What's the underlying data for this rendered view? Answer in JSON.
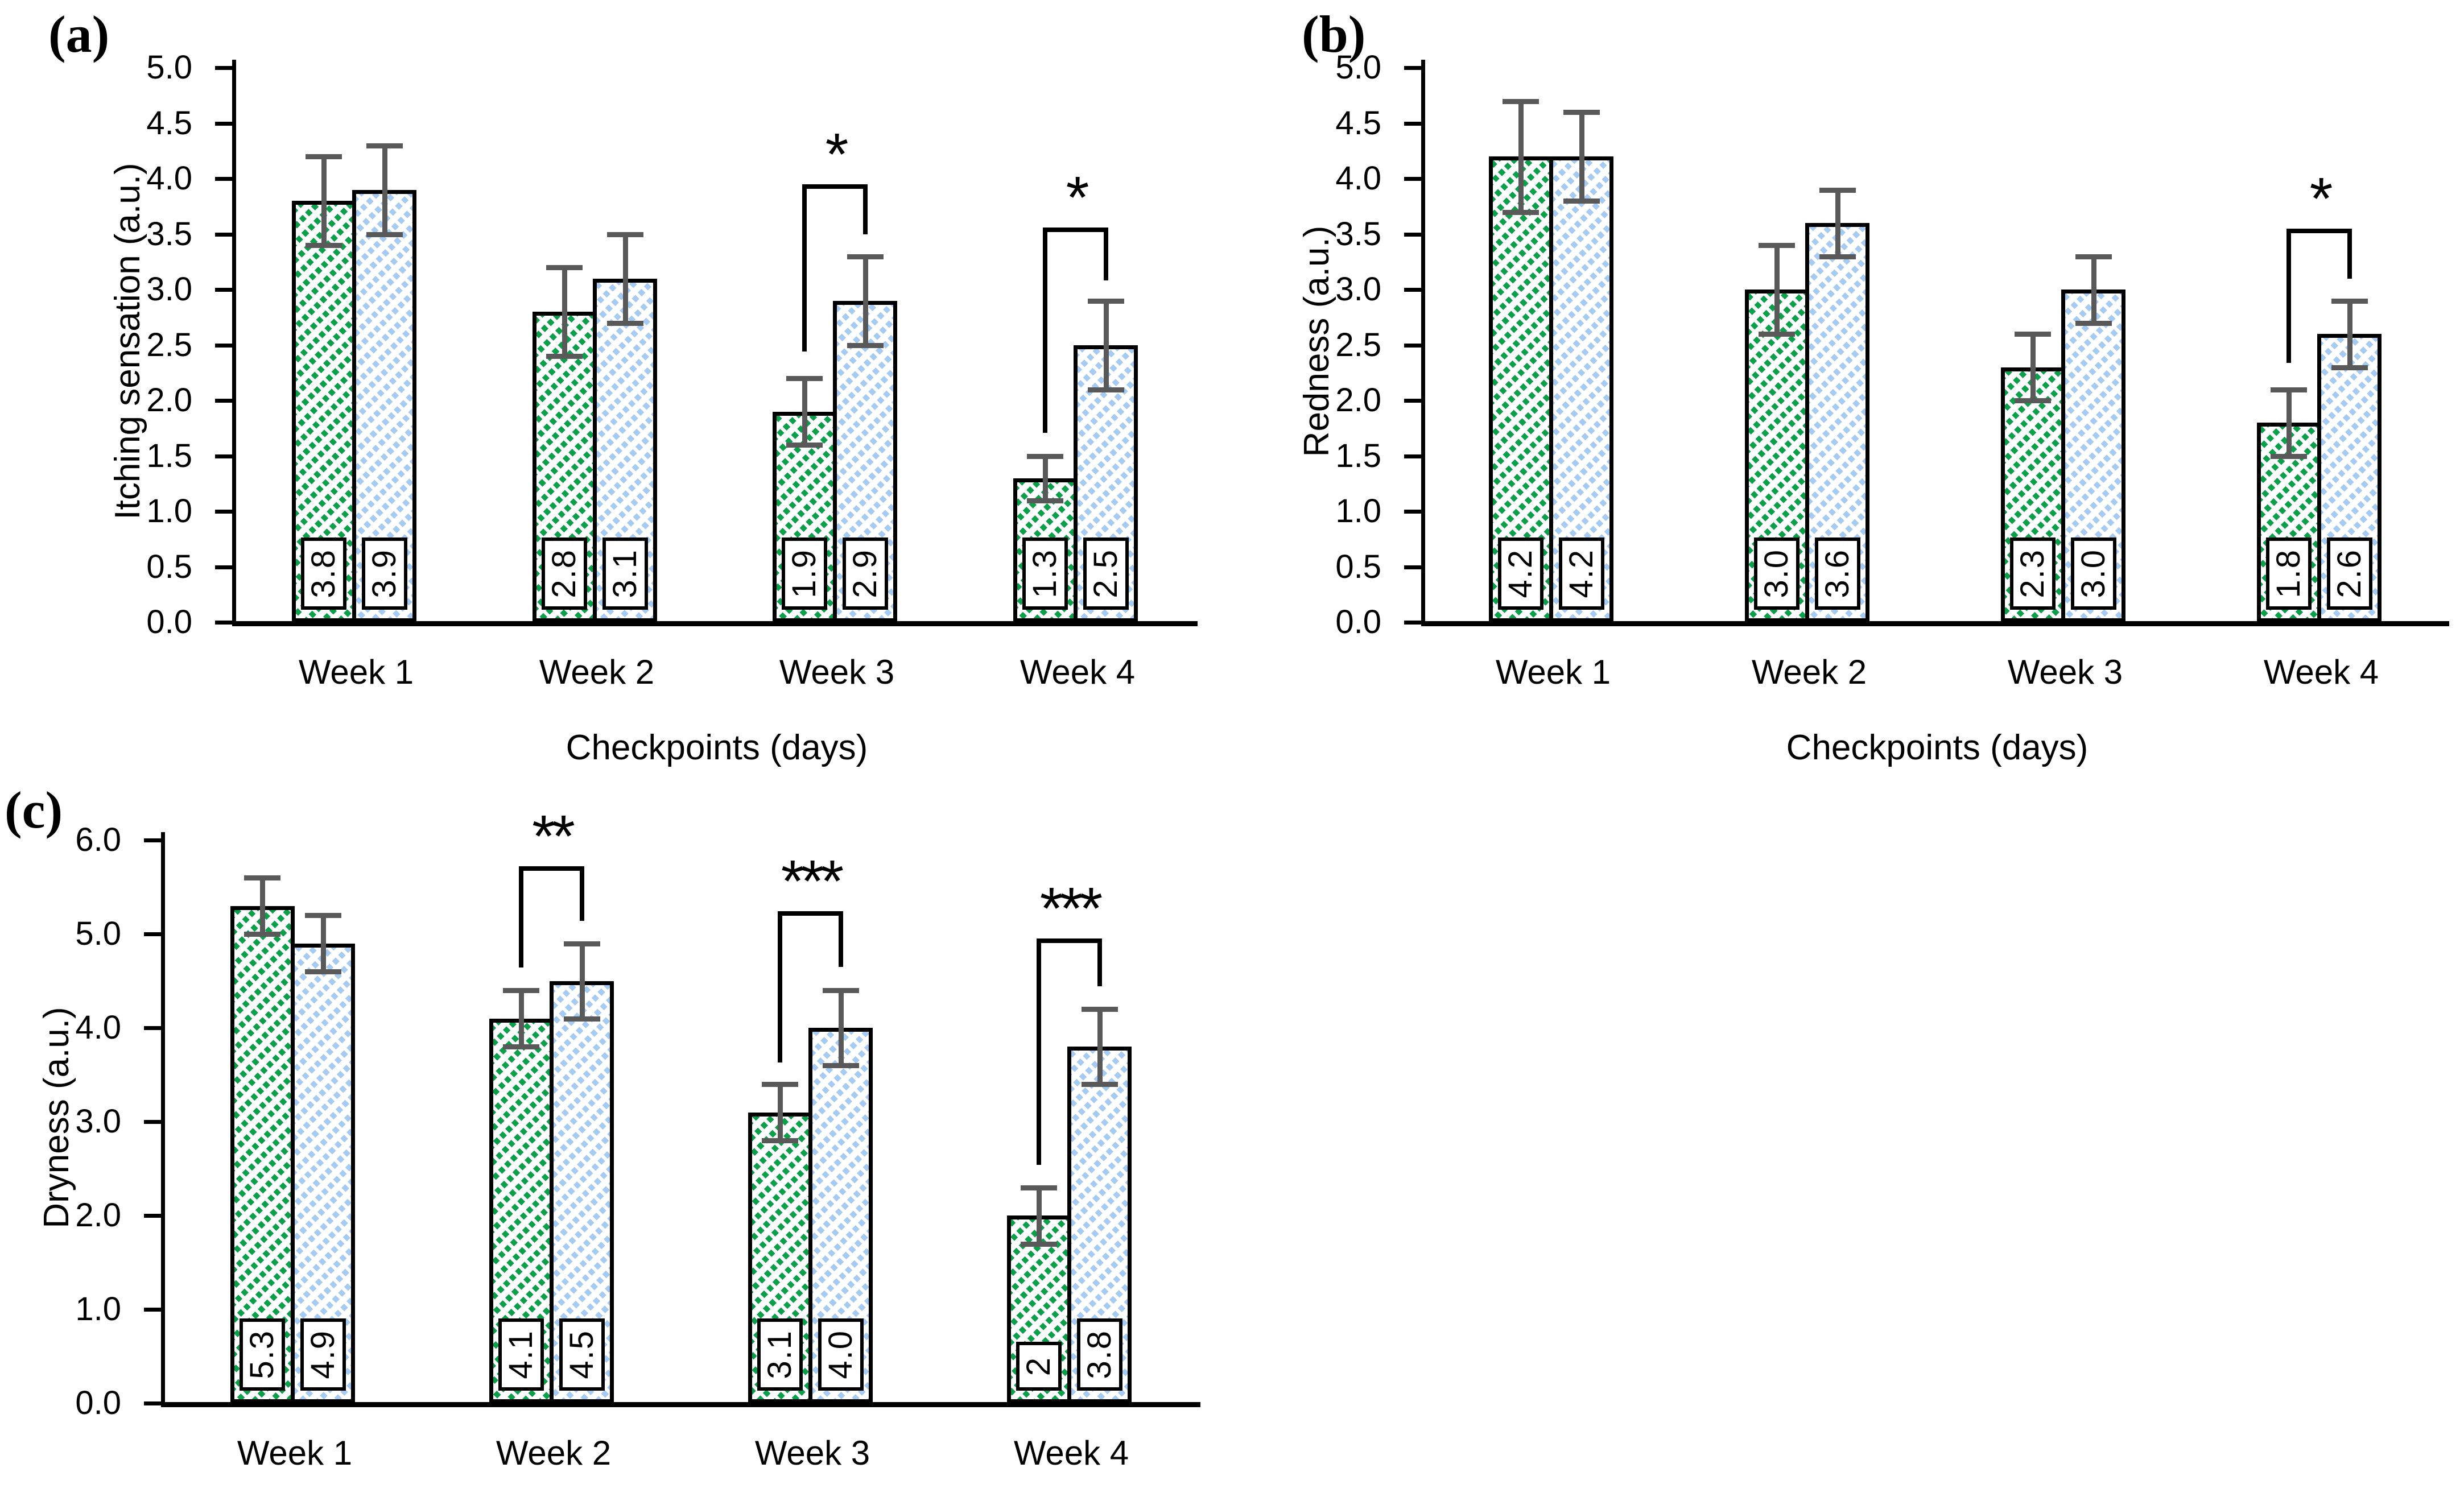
{
  "figure": {
    "background": "#ffffff",
    "bar_fill_green": "#0aa04a",
    "bar_fill_blue": "#a6cbf2",
    "bar_border": "#000000",
    "error_bar_color": "#595959",
    "significance_color": "#000000",
    "text_color": "#000000"
  },
  "chart_data": [
    {
      "type": "bar",
      "panel_label": "(a)",
      "ylabel": "Itching sensation (a.u.)",
      "xlabel": "Checkpoints (days)",
      "ylim": [
        0.0,
        5.0
      ],
      "ytick_step": 0.5,
      "grid": false,
      "legend": "none",
      "categories": [
        "Week 1",
        "Week 2",
        "Week 3",
        "Week 4"
      ],
      "series": [
        {
          "name": "green-hatched",
          "values": [
            3.8,
            2.8,
            1.9,
            1.3
          ],
          "errors": [
            0.4,
            0.4,
            0.3,
            0.2
          ],
          "labels": [
            "3.8",
            "2.8",
            "1.9",
            "1.3"
          ]
        },
        {
          "name": "blue-hatched",
          "values": [
            3.9,
            3.1,
            2.9,
            2.5
          ],
          "errors": [
            0.4,
            0.4,
            0.4,
            0.4
          ],
          "labels": [
            "3.9",
            "3.1",
            "2.9",
            "2.5"
          ]
        }
      ],
      "significance": [
        {
          "group_index": 2,
          "symbol": "*",
          "bracket_top": 3.95,
          "left_leg_bottom": 2.44,
          "right_leg_bottom": 3.5
        },
        {
          "group_index": 3,
          "symbol": "*",
          "bracket_top": 3.56,
          "left_leg_bottom": 1.71,
          "right_leg_bottom": 3.08
        }
      ]
    },
    {
      "type": "bar",
      "panel_label": "(b)",
      "ylabel": "Redness (a.u.)",
      "xlabel": "Checkpoints (days)",
      "ylim": [
        0.0,
        5.0
      ],
      "ytick_step": 0.5,
      "grid": false,
      "legend": "none",
      "categories": [
        "Week 1",
        "Week 2",
        "Week 3",
        "Week 4"
      ],
      "series": [
        {
          "name": "green-hatched",
          "values": [
            4.2,
            3.0,
            2.3,
            1.8
          ],
          "errors": [
            0.5,
            0.4,
            0.3,
            0.3
          ],
          "labels": [
            "4.2",
            "3.0",
            "2.3",
            "1.8"
          ]
        },
        {
          "name": "blue-hatched",
          "values": [
            4.2,
            3.6,
            3.0,
            2.6
          ],
          "errors": [
            0.4,
            0.3,
            0.3,
            0.3
          ],
          "labels": [
            "4.2",
            "3.6",
            "3.0",
            "2.6"
          ]
        }
      ],
      "significance": [
        {
          "group_index": 3,
          "symbol": "*",
          "bracket_top": 3.55,
          "left_leg_bottom": 2.34,
          "right_leg_bottom": 3.1
        }
      ]
    },
    {
      "type": "bar",
      "panel_label": "(c)",
      "ylabel": "Dryness (a.u.)",
      "xlabel": "Checkpoints (days)",
      "ylim": [
        0.0,
        6.0
      ],
      "ytick_step": 1.0,
      "grid": false,
      "legend": "none",
      "categories": [
        "Week 1",
        "Week 2",
        "Week 3",
        "Week 4"
      ],
      "series": [
        {
          "name": "green-hatched",
          "values": [
            5.3,
            4.1,
            3.1,
            2.0
          ],
          "errors": [
            0.3,
            0.3,
            0.3,
            0.3
          ],
          "labels": [
            "5.3",
            "4.1",
            "3.1",
            "2"
          ]
        },
        {
          "name": "blue-hatched",
          "values": [
            4.9,
            4.5,
            4.0,
            3.8
          ],
          "errors": [
            0.3,
            0.4,
            0.4,
            0.4
          ],
          "labels": [
            "4.9",
            "4.5",
            "4.0",
            "3.8"
          ]
        }
      ],
      "significance": [
        {
          "group_index": 1,
          "symbol": "**",
          "bracket_top": 5.72,
          "left_leg_bottom": 4.64,
          "right_leg_bottom": 5.14
        },
        {
          "group_index": 2,
          "symbol": "***",
          "bracket_top": 5.24,
          "left_leg_bottom": 3.63,
          "right_leg_bottom": 4.65
        },
        {
          "group_index": 3,
          "symbol": "***",
          "bracket_top": 4.95,
          "left_leg_bottom": 2.54,
          "right_leg_bottom": 4.44
        }
      ]
    }
  ]
}
